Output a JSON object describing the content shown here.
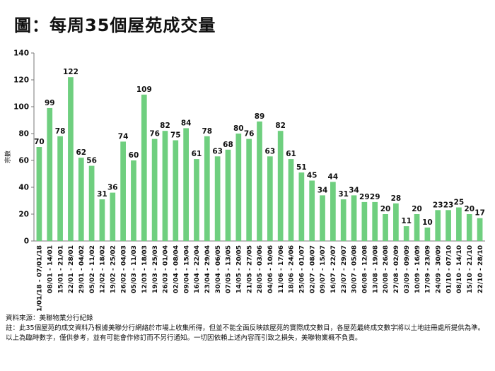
{
  "chart_data": {
    "type": "bar",
    "title": "圖：每周35個屋苑成交量",
    "ylabel": "宗數",
    "xlabel": "",
    "ylim": [
      0,
      140
    ],
    "yticks": [
      0,
      20,
      40,
      60,
      80,
      100,
      120,
      140
    ],
    "bar_color": "#6fcf7f",
    "grid": false,
    "categories": [
      "01/01/18 - 07/01/18",
      "08/01 - 14/01",
      "15/01 - 21/01",
      "22/01 - 28/01",
      "29/01 - 04/02",
      "05/02 - 11/02",
      "12/02 - 18/02",
      "19/02 - 25/02",
      "26/02 - 04/03",
      "05/03 - 11/03",
      "12/03 - 18/03",
      "19/03 - 25/03",
      "26/03 - 01/04",
      "02/04 - 08/04",
      "09/04 - 15/04",
      "16/04 - 22/04",
      "23/04 - 29/04",
      "30/04 - 06/05",
      "07/05 - 13/05",
      "14/05 - 20/05",
      "21/05 - 27/05",
      "28/05 - 03/06",
      "04/06 - 10/06",
      "11/06 - 17/06",
      "18/06 - 24/06",
      "25/06 - 01/07",
      "02/07 - 08/07",
      "09/07 - 15/07",
      "16/07 - 22/07",
      "23/07 - 29/07",
      "30/07 - 05/08",
      "06/08 - 12/08",
      "13/08 - 19/08",
      "20/08 - 26/08",
      "27/08 - 02/09",
      "03/09 - 09/09",
      "10/09 - 16/09",
      "17/09 - 23/09",
      "24/09 - 30/09",
      "01/10 - 07/10",
      "08/10 - 14/10",
      "15/10 - 21/10",
      "22/10 - 28/10"
    ],
    "values": [
      70,
      99,
      78,
      122,
      62,
      56,
      31,
      36,
      74,
      60,
      109,
      76,
      82,
      75,
      84,
      61,
      78,
      63,
      68,
      80,
      76,
      89,
      63,
      82,
      61,
      51,
      45,
      34,
      44,
      31,
      34,
      29,
      29,
      20,
      28,
      11,
      20,
      10,
      23,
      23,
      25,
      20,
      17
    ]
  },
  "notes": {
    "source": "資料來源：美聯物業分行紀錄",
    "footnote": "註：此35個屋苑的成交資料乃根據美聯分行網絡於市場上收集所得，但並不能全面反映該屋苑的實際成交數目，各屋苑最終成交數字將以土地註冊處所提供為準。以上為臨時數字，僅供參考，並有可能會作修訂而不另行通知。一切因依賴上述內容而引致之損失，美聯物業概不負責。"
  }
}
